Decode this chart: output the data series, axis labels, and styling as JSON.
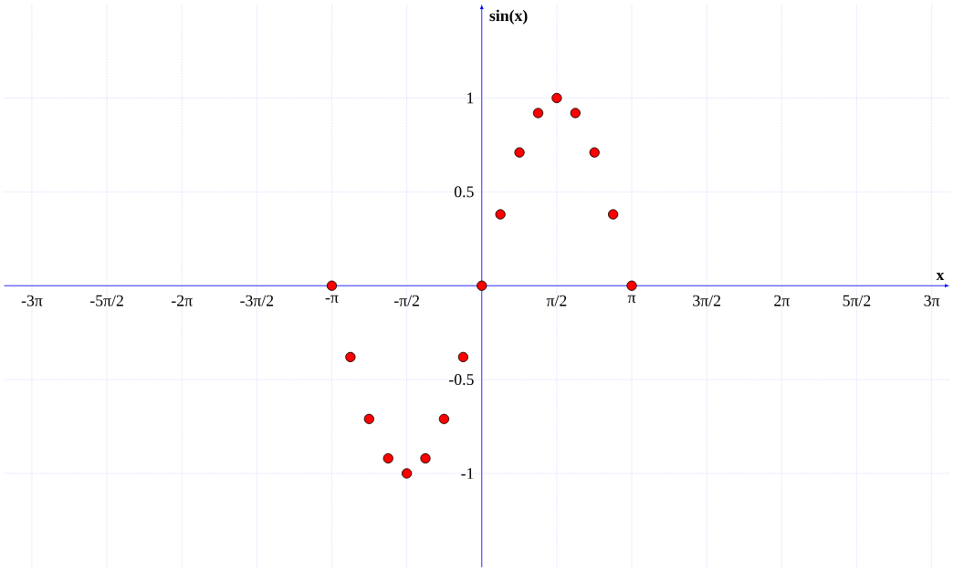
{
  "chart_data": {
    "type": "scatter",
    "xlabel": "x",
    "ylabel": "sin(x)",
    "x": [
      -3.14,
      -2.75,
      -2.36,
      -1.96,
      -1.57,
      -1.18,
      -0.79,
      -0.39,
      0,
      0.39,
      0.79,
      1.18,
      1.57,
      1.96,
      2.36,
      2.75,
      3.14
    ],
    "values": [
      0,
      -0.38,
      -0.71,
      -0.92,
      -1,
      -0.92,
      -0.71,
      -0.38,
      0,
      0.38,
      0.71,
      0.92,
      1,
      0.92,
      0.71,
      0.38,
      0
    ],
    "color": "#ff0000",
    "marker": "circle",
    "grid": true,
    "xlim": [
      -10,
      9.8
    ],
    "ylim": [
      -1.5,
      1.5
    ],
    "xticks": [
      {
        "value": -9.42,
        "label": "-3π"
      },
      {
        "value": -7.85,
        "label": "-5π/2"
      },
      {
        "value": -6.28,
        "label": "-2π"
      },
      {
        "value": -4.71,
        "label": "-3π/2"
      },
      {
        "value": -3.14,
        "label": "-π"
      },
      {
        "value": -1.57,
        "label": "-π/2"
      },
      {
        "value": 0,
        "label": null
      },
      {
        "value": 1.57,
        "label": "π/2"
      },
      {
        "value": 3.14,
        "label": "π"
      },
      {
        "value": 4.71,
        "label": "3π/2"
      },
      {
        "value": 6.28,
        "label": "2π"
      },
      {
        "value": 7.85,
        "label": "5π/2"
      },
      {
        "value": 9.42,
        "label": "3π"
      }
    ],
    "yticks": [
      -1,
      -0.5,
      {
        "value": 0,
        "label": null
      },
      0.5,
      1
    ]
  }
}
